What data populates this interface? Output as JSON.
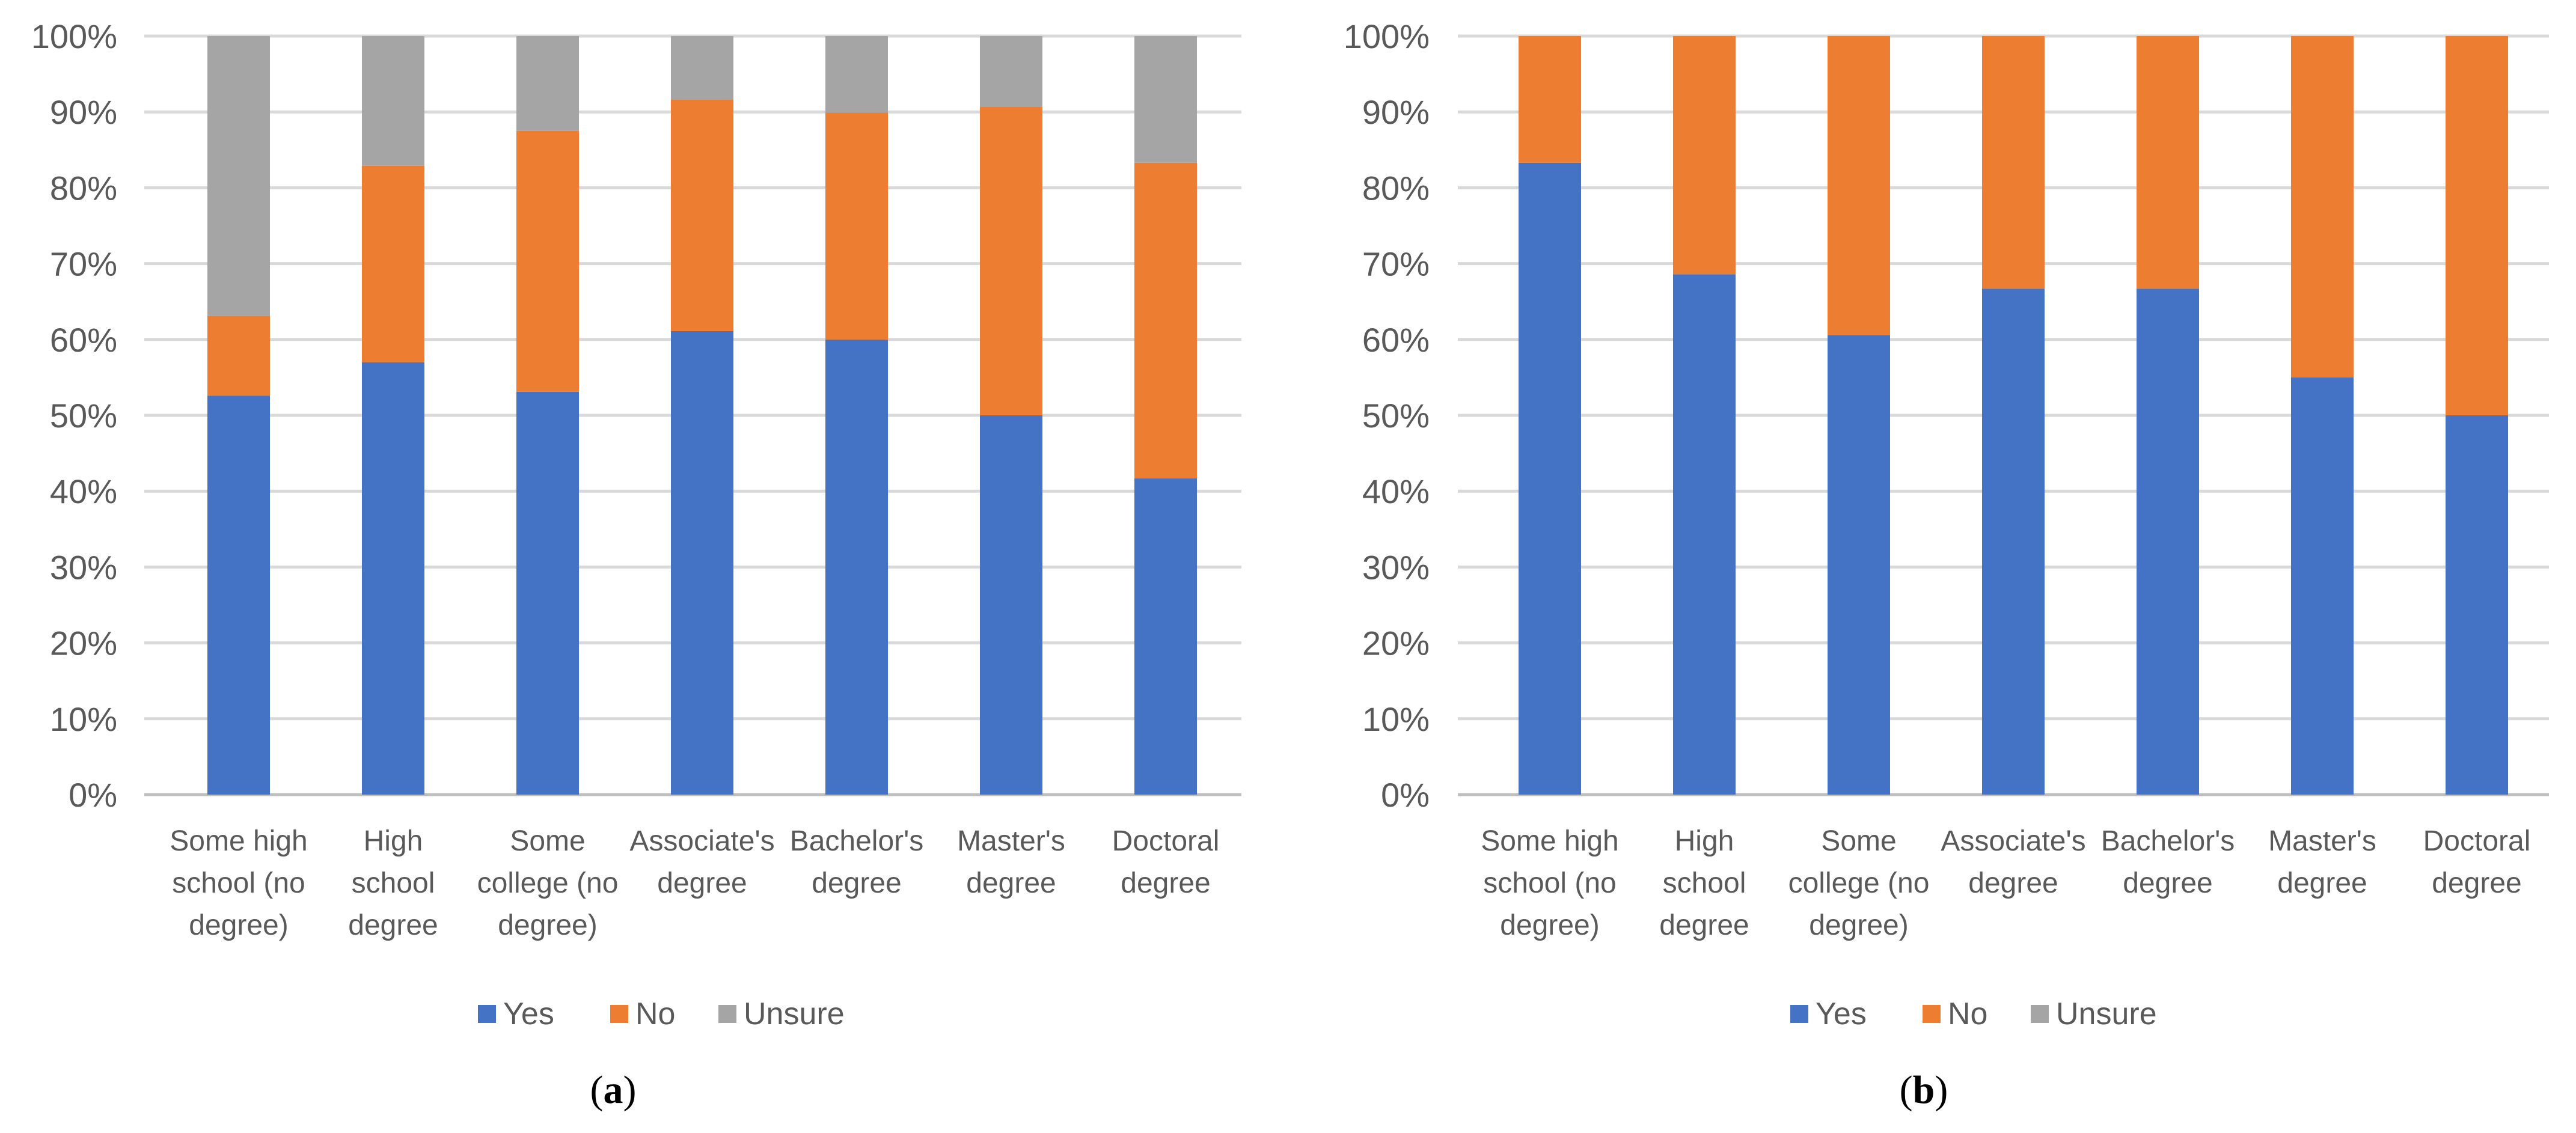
{
  "chart_data": [
    {
      "type": "bar",
      "stacked": true,
      "panel_label": "a",
      "categories": [
        "Some high school (no degree)",
        "High school degree",
        "Some college (no degree)",
        "Associate's degree",
        "Bachelor's degree",
        "Master's degree",
        "Doctoral degree"
      ],
      "category_lines": [
        [
          "Some high",
          "school (no",
          "degree)"
        ],
        [
          "High",
          "school",
          "degree"
        ],
        [
          "Some",
          "college (no",
          "degree)"
        ],
        [
          "Associate's",
          "degree"
        ],
        [
          "Bachelor's",
          "degree"
        ],
        [
          "Master's",
          "degree"
        ],
        [
          "Doctoral",
          "degree"
        ]
      ],
      "series": [
        {
          "name": "Yes",
          "color": "#4472C4",
          "values": [
            52.6,
            57.0,
            53.1,
            61.1,
            60.0,
            50.0,
            41.7
          ]
        },
        {
          "name": "No",
          "color": "#ED7D31",
          "values": [
            10.5,
            25.9,
            34.4,
            30.5,
            29.9,
            40.7,
            41.6
          ]
        },
        {
          "name": "Unsure",
          "color": "#A5A5A5",
          "values": [
            36.9,
            17.1,
            12.5,
            8.4,
            10.1,
            9.3,
            16.7
          ]
        }
      ],
      "ylim": [
        0,
        100
      ],
      "yticks": [
        "0%",
        "10%",
        "20%",
        "30%",
        "40%",
        "50%",
        "60%",
        "70%",
        "80%",
        "90%",
        "100%"
      ],
      "legend_position": "bottom",
      "grid": true
    },
    {
      "type": "bar",
      "stacked": true,
      "panel_label": "b",
      "categories": [
        "Some high school (no degree)",
        "High school degree",
        "Some college (no degree)",
        "Associate's degree",
        "Bachelor's degree",
        "Master's degree",
        "Doctoral degree"
      ],
      "category_lines": [
        [
          "Some high",
          "school (no",
          "degree)"
        ],
        [
          "High",
          "school",
          "degree"
        ],
        [
          "Some",
          "college (no",
          "degree)"
        ],
        [
          "Associate's",
          "degree"
        ],
        [
          "Bachelor's",
          "degree"
        ],
        [
          "Master's",
          "degree"
        ],
        [
          "Doctoral",
          "degree"
        ]
      ],
      "series": [
        {
          "name": "Yes",
          "color": "#4472C4",
          "values": [
            83.3,
            68.6,
            60.6,
            66.7,
            66.7,
            55.0,
            50.0
          ]
        },
        {
          "name": "No",
          "color": "#ED7D31",
          "values": [
            16.7,
            31.4,
            39.4,
            33.3,
            33.3,
            45.0,
            50.0
          ]
        },
        {
          "name": "Unsure",
          "color": "#A5A5A5",
          "values": [
            0,
            0,
            0,
            0,
            0,
            0,
            0
          ]
        }
      ],
      "ylim": [
        0,
        100
      ],
      "yticks": [
        "0%",
        "10%",
        "20%",
        "30%",
        "40%",
        "50%",
        "60%",
        "70%",
        "80%",
        "90%",
        "100%"
      ],
      "legend_position": "bottom",
      "grid": true
    }
  ]
}
